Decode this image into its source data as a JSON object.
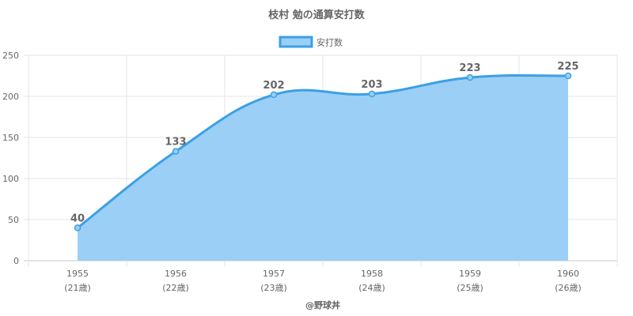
{
  "chart_data": {
    "type": "area",
    "title": "枝村 勉の通算安打数",
    "legend": {
      "position": "top",
      "label": "安打数"
    },
    "categories": [
      "1955",
      "1956",
      "1957",
      "1958",
      "1959",
      "1960"
    ],
    "category_sublabels": [
      "(21歳)",
      "(22歳)",
      "(23歳)",
      "(24歳)",
      "(25歳)",
      "(26歳)"
    ],
    "series": [
      {
        "name": "安打数",
        "values": [
          40,
          133,
          202,
          203,
          223,
          225
        ]
      }
    ],
    "ylim": [
      0,
      250
    ],
    "yticks": [
      0,
      50,
      100,
      150,
      200,
      250
    ],
    "grid": true,
    "colors": {
      "line": "#3aa0e6",
      "fill": "#9ccff5",
      "grid": "#e6e6e6",
      "text": "#666666"
    }
  },
  "footer": "@野球丼"
}
